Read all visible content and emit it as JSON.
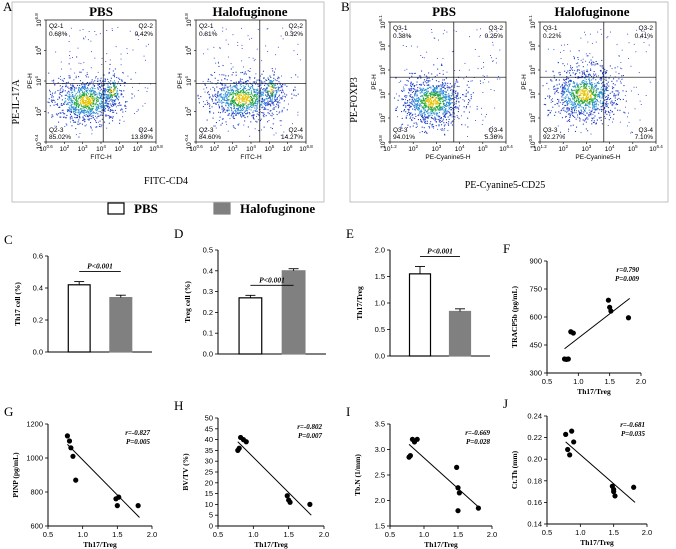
{
  "figure": {
    "panel_letters": [
      "A",
      "B",
      "C",
      "D",
      "E",
      "F",
      "G",
      "H",
      "I",
      "J"
    ],
    "legend": {
      "items": [
        "PBS",
        "Halofuginone"
      ]
    },
    "colors": {
      "pbs": "#ffffff",
      "halofuginone": "#808080",
      "axis": "#000000"
    }
  },
  "flow": {
    "A": {
      "pbs_title": "PBS",
      "halo_title": "Halofuginone",
      "y_title": "PE-IL-17A",
      "x_title": "FITC-CD4",
      "plot_ylabel": "PE-H",
      "plot_xlabel": "FITC-H",
      "yticks": [
        "10^-0.4",
        "10^2",
        "10^4",
        "10^6",
        "10^6.8"
      ],
      "xticks": [
        "10^0.6",
        "10^2",
        "10^3",
        "10^4",
        "10^5",
        "10^6",
        "10^6.8"
      ],
      "pbs": {
        "q1": "Q2-1",
        "q1v": "0.68%",
        "q2": "Q2-2",
        "q2v": "0.42%",
        "q3": "Q2-3",
        "q3v": "85.02%",
        "q4": "Q2-4",
        "q4v": "13.89%"
      },
      "halo": {
        "q1": "Q2-1",
        "q1v": "0.81%",
        "q2": "Q2-2",
        "q2v": "0.32%",
        "q3": "Q2-3",
        "q3v": "84.60%",
        "q4": "Q2-4",
        "q4v": "14.27%"
      }
    },
    "B": {
      "pbs_title": "PBS",
      "halo_title": "Halofuginone",
      "y_title": "PE-FOXP3",
      "x_title": "PE-Cyanine5-CD25",
      "plot_ylabel": "PE-H",
      "plot_xlabel": "PE-Cyanine5-H",
      "yticks": [
        "10^0.8",
        "10^2",
        "10^3",
        "10^4",
        "10^5",
        "10^6.1"
      ],
      "xticks": [
        "10^1.2",
        "10^2",
        "10^3",
        "10^4",
        "10^5",
        "10^6.4"
      ],
      "pbs": {
        "q1": "Q3-1",
        "q1v": "0.38%",
        "q2": "Q3-2",
        "q2v": "0.25%",
        "q3": "Q3-3",
        "q3v": "94.01%",
        "q4": "Q3-4",
        "q4v": "5.36%"
      },
      "halo": {
        "q1": "Q3-1",
        "q1v": "0.22%",
        "q2": "Q3-2",
        "q2v": "0.41%",
        "q3": "Q3-3",
        "q3v": "92.27%",
        "q4": "Q3-4",
        "q4v": "7.10%"
      }
    }
  },
  "chart_data": [
    {
      "id": "C",
      "type": "bar",
      "categories": [
        "PBS",
        "Halofuginone"
      ],
      "values": [
        0.42,
        0.34
      ],
      "errors": [
        0.02,
        0.015
      ],
      "ylabel": "Th17 cell (%)",
      "ylim": [
        0,
        0.6
      ],
      "yticks": [
        "0.0",
        "0.2",
        "0.4",
        "0.6"
      ],
      "annotation": "P<0.001"
    },
    {
      "id": "D",
      "type": "bar",
      "categories": [
        "PBS",
        "Halofuginone"
      ],
      "values": [
        0.27,
        0.4
      ],
      "errors": [
        0.012,
        0.01
      ],
      "ylabel": "Treg cell (%)",
      "ylim": [
        0,
        0.5
      ],
      "yticks": [
        "0.0",
        "0.1",
        "0.2",
        "0.3",
        "0.4",
        "0.5"
      ],
      "annotation": "P<0.001"
    },
    {
      "id": "E",
      "type": "bar",
      "categories": [
        "PBS",
        "Halofuginone"
      ],
      "values": [
        1.55,
        0.84
      ],
      "errors": [
        0.14,
        0.05
      ],
      "ylabel": "Th17/Treg",
      "ylim": [
        0,
        2.0
      ],
      "yticks": [
        "0.0",
        "0.5",
        "1.0",
        "1.5",
        "2.0"
      ],
      "annotation": "P<0.001"
    },
    {
      "id": "F",
      "type": "scatter",
      "xlabel": "Th17/Treg",
      "ylabel": "TRACP5b (pg/mL)",
      "xlim": [
        0.5,
        2.0
      ],
      "ylim": [
        300,
        900
      ],
      "xticks": [
        "0.5",
        "1.0",
        "1.5",
        "2.0"
      ],
      "yticks": [
        "300",
        "450",
        "600",
        "750",
        "900"
      ],
      "r": "r=0.790",
      "p": "P=0.009",
      "points": [
        [
          0.78,
          375
        ],
        [
          0.81,
          373
        ],
        [
          0.84,
          375
        ],
        [
          0.88,
          521
        ],
        [
          0.92,
          514
        ],
        [
          1.48,
          690
        ],
        [
          1.5,
          652
        ],
        [
          1.52,
          632
        ],
        [
          1.8,
          596
        ]
      ],
      "fit": [
        [
          0.78,
          430
        ],
        [
          1.82,
          700
        ]
      ]
    },
    {
      "id": "G",
      "type": "scatter",
      "xlabel": "Th17/Treg",
      "ylabel": "PINP (pg/mL)",
      "xlim": [
        0.5,
        2.0
      ],
      "ylim": [
        600,
        1200
      ],
      "xticks": [
        "0.5",
        "1.0",
        "1.5",
        "2.0"
      ],
      "yticks": [
        "600",
        "800",
        "1000",
        "1200"
      ],
      "r": "r=-0.827",
      "p": "P=0.005",
      "points": [
        [
          0.78,
          1130
        ],
        [
          0.81,
          1100
        ],
        [
          0.83,
          1060
        ],
        [
          0.86,
          1010
        ],
        [
          0.9,
          870
        ],
        [
          1.48,
          760
        ],
        [
          1.5,
          720
        ],
        [
          1.52,
          770
        ],
        [
          1.8,
          720
        ]
      ],
      "fit": [
        [
          0.78,
          1080
        ],
        [
          1.82,
          650
        ]
      ]
    },
    {
      "id": "H",
      "type": "scatter",
      "xlabel": "Th17/Treg",
      "ylabel": "BV/TV (%)",
      "xlim": [
        0.5,
        2.0
      ],
      "ylim": [
        0,
        50
      ],
      "xticks": [
        "0.5",
        "1.0",
        "1.5",
        "2.0"
      ],
      "yticks": [
        "0",
        "5",
        "10",
        "15",
        "20",
        "25",
        "30",
        "35",
        "40",
        "45",
        "50"
      ],
      "r": "r=-0.802",
      "p": "P=0.007",
      "points": [
        [
          0.78,
          35
        ],
        [
          0.8,
          36
        ],
        [
          0.82,
          41
        ],
        [
          0.86,
          40
        ],
        [
          0.9,
          39
        ],
        [
          1.48,
          14
        ],
        [
          1.5,
          12
        ],
        [
          1.52,
          11
        ],
        [
          1.8,
          10
        ]
      ],
      "fit": [
        [
          0.78,
          39
        ],
        [
          1.82,
          5
        ]
      ]
    },
    {
      "id": "I",
      "type": "scatter",
      "xlabel": "Th17/Treg",
      "ylabel": "Tb.N (1/mm)",
      "xlim": [
        0.5,
        2.0
      ],
      "ylim": [
        1.5,
        3.5
      ],
      "xticks": [
        "0.5",
        "1.0",
        "1.5",
        "2.0"
      ],
      "yticks": [
        "1.5",
        "2.0",
        "2.5",
        "3.0",
        "3.5"
      ],
      "r": "r=-0.669",
      "p": "P=0.028",
      "points": [
        [
          0.78,
          2.85
        ],
        [
          0.8,
          2.88
        ],
        [
          0.83,
          3.2
        ],
        [
          0.86,
          3.15
        ],
        [
          0.9,
          3.2
        ],
        [
          1.48,
          2.65
        ],
        [
          1.5,
          2.25
        ],
        [
          1.52,
          2.15
        ],
        [
          1.5,
          1.8
        ],
        [
          1.8,
          1.85
        ]
      ],
      "fit": [
        [
          0.78,
          3.1
        ],
        [
          1.82,
          1.85
        ]
      ]
    },
    {
      "id": "J",
      "type": "scatter",
      "xlabel": "Th17/Treg",
      "ylabel": "Ct.Th (mm)",
      "xlim": [
        0.5,
        2.0
      ],
      "ylim": [
        0.14,
        0.24
      ],
      "xticks": [
        "0.5",
        "1.0",
        "1.5",
        "2.0"
      ],
      "yticks": [
        "0.14",
        "0.16",
        "0.18",
        "0.20",
        "0.22",
        "0.24"
      ],
      "r": "r=-0.681",
      "p": "P=0.035",
      "points": [
        [
          0.78,
          0.223
        ],
        [
          0.81,
          0.209
        ],
        [
          0.84,
          0.204
        ],
        [
          0.87,
          0.226
        ],
        [
          0.9,
          0.216
        ],
        [
          1.48,
          0.175
        ],
        [
          1.5,
          0.17
        ],
        [
          1.52,
          0.166
        ],
        [
          1.5,
          0.172
        ],
        [
          1.8,
          0.174
        ]
      ],
      "fit": [
        [
          0.78,
          0.216
        ],
        [
          1.82,
          0.16
        ]
      ]
    }
  ]
}
